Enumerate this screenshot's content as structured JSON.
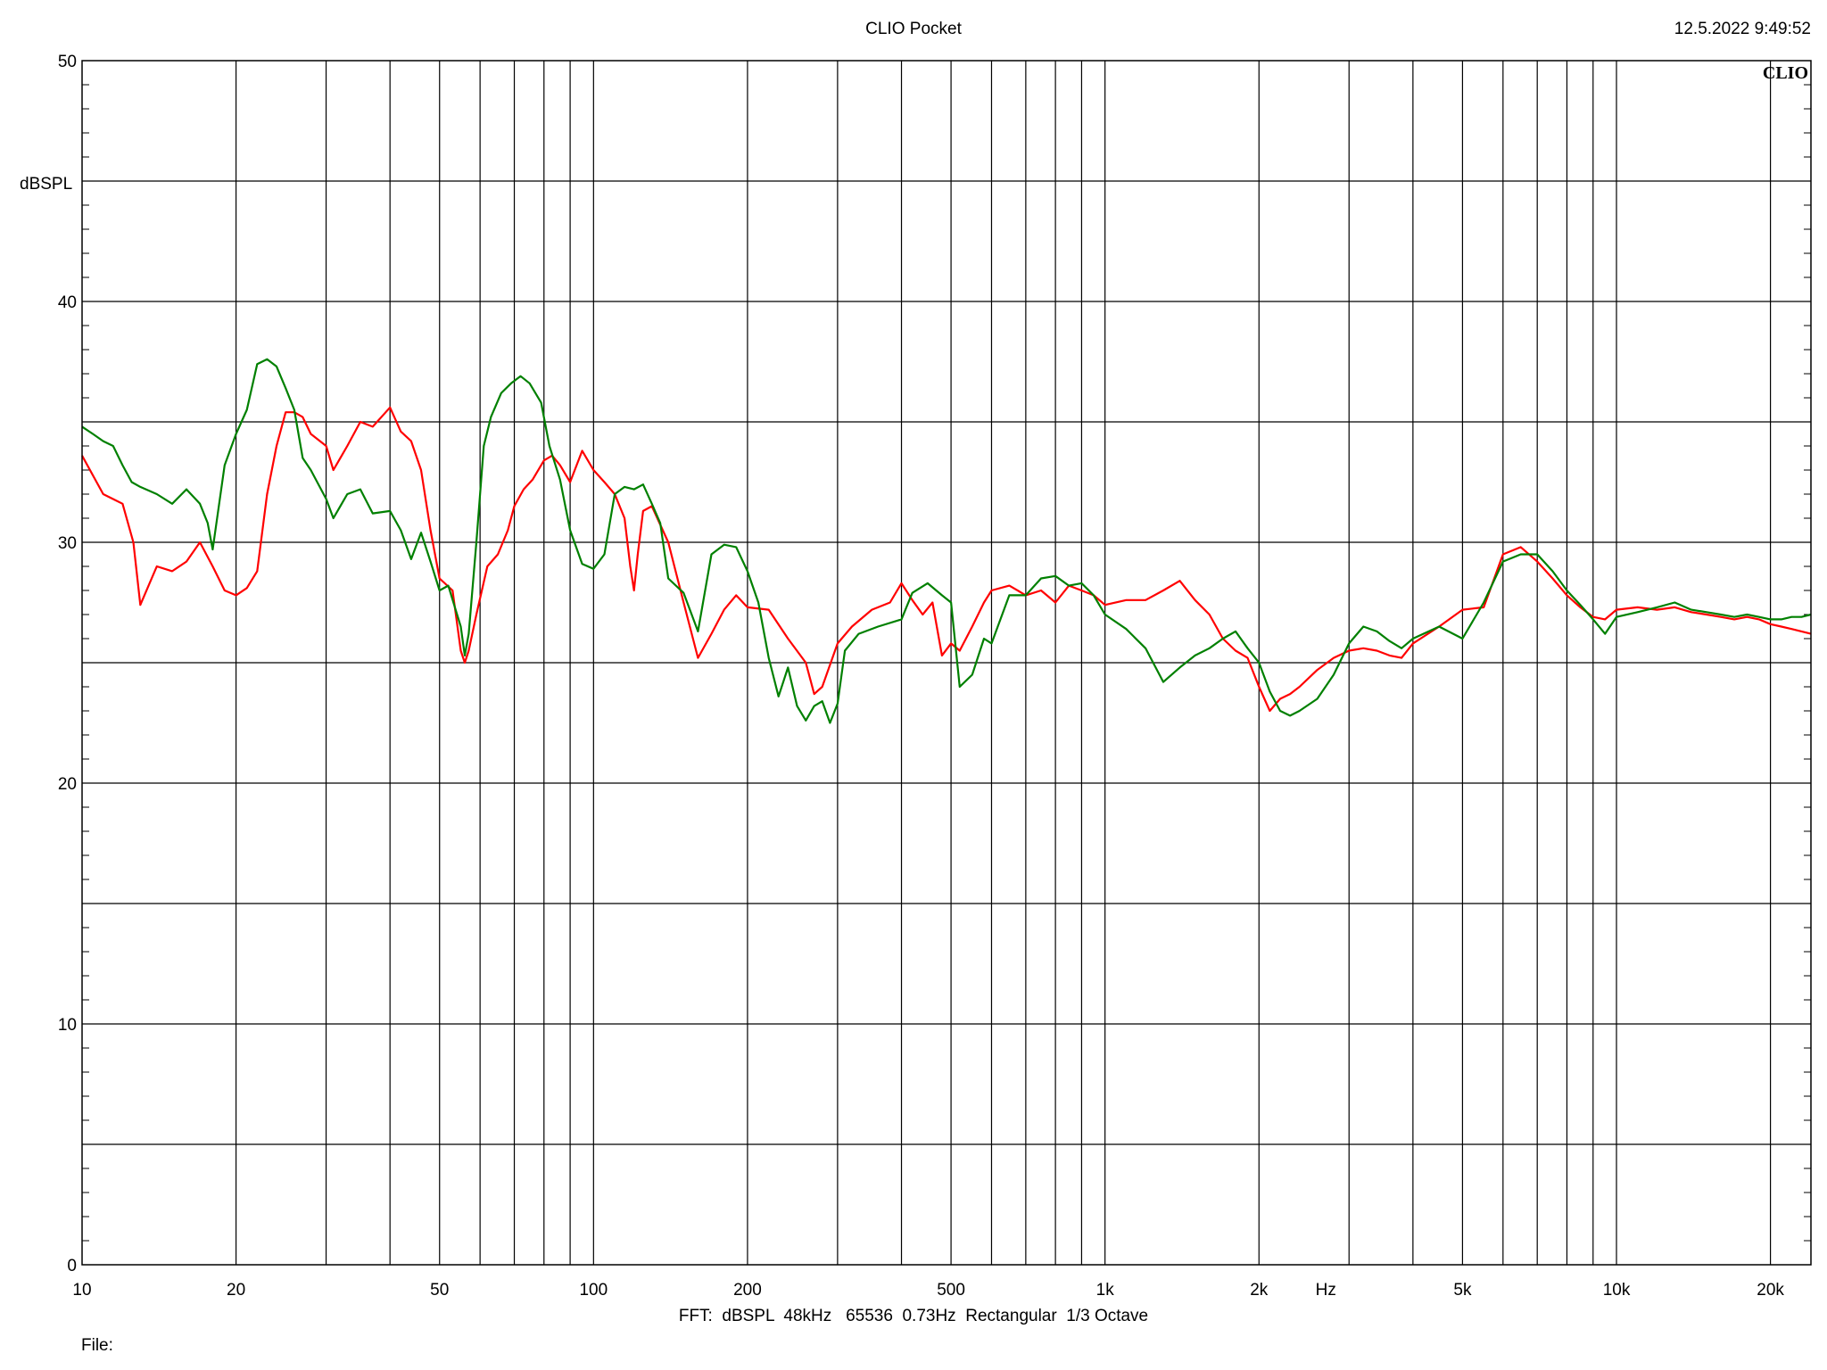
{
  "header": {
    "title": "CLIO Pocket",
    "timestamp": "12.5.2022 9:49:52",
    "logo": "CLIO"
  },
  "footer": {
    "settings": "FFT:  dBSPL  48kHz   65536  0.73Hz  Rectangular  1/3 Octave",
    "file_label": "File:"
  },
  "colors": {
    "background": "#ffffff",
    "grid": "#000000",
    "series1": "#ff0000",
    "series2": "#008000"
  },
  "chart_data": {
    "type": "line",
    "title": "CLIO Pocket",
    "xlabel": "Hz",
    "ylabel": "dBSPL",
    "xscale": "log",
    "xlim": [
      10,
      24000
    ],
    "ylim": [
      0,
      50
    ],
    "grid": true,
    "x_ticks": [
      {
        "value": 10,
        "label": "10"
      },
      {
        "value": 20,
        "label": "20"
      },
      {
        "value": 50,
        "label": "50"
      },
      {
        "value": 100,
        "label": "100"
      },
      {
        "value": 200,
        "label": "200"
      },
      {
        "value": 500,
        "label": "500"
      },
      {
        "value": 1000,
        "label": "1k"
      },
      {
        "value": 2000,
        "label": "2k"
      },
      {
        "value": 5000,
        "label": "5k"
      },
      {
        "value": 10000,
        "label": "10k"
      },
      {
        "value": 20000,
        "label": "20k"
      }
    ],
    "y_ticks": [
      0,
      10,
      20,
      30,
      40,
      50
    ],
    "series": [
      {
        "color": "#ff0000",
        "points": [
          [
            10,
            33.6
          ],
          [
            11,
            32.0
          ],
          [
            12,
            31.6
          ],
          [
            12.6,
            30.0
          ],
          [
            13,
            27.4
          ],
          [
            14,
            29.0
          ],
          [
            15,
            28.8
          ],
          [
            16,
            29.2
          ],
          [
            17,
            30.0
          ],
          [
            18,
            29.0
          ],
          [
            19,
            28.0
          ],
          [
            20,
            27.8
          ],
          [
            21,
            28.1
          ],
          [
            22,
            28.8
          ],
          [
            23,
            32.0
          ],
          [
            24,
            34.0
          ],
          [
            25,
            35.4
          ],
          [
            26,
            35.4
          ],
          [
            27,
            35.2
          ],
          [
            28,
            34.5
          ],
          [
            30,
            34.0
          ],
          [
            31,
            33.0
          ],
          [
            33,
            34.0
          ],
          [
            35,
            35.0
          ],
          [
            37,
            34.8
          ],
          [
            40,
            35.6
          ],
          [
            42,
            34.6
          ],
          [
            44,
            34.2
          ],
          [
            46,
            33.0
          ],
          [
            48,
            30.5
          ],
          [
            50,
            28.5
          ],
          [
            53,
            28.0
          ],
          [
            55,
            25.5
          ],
          [
            56,
            25.0
          ],
          [
            57,
            25.5
          ],
          [
            59,
            27.0
          ],
          [
            62,
            29.0
          ],
          [
            65,
            29.5
          ],
          [
            68,
            30.5
          ],
          [
            70,
            31.5
          ],
          [
            73,
            32.2
          ],
          [
            76,
            32.6
          ],
          [
            80,
            33.4
          ],
          [
            83,
            33.6
          ],
          [
            86,
            33.2
          ],
          [
            90,
            32.5
          ],
          [
            95,
            33.8
          ],
          [
            100,
            33.0
          ],
          [
            105,
            32.5
          ],
          [
            110,
            32.0
          ],
          [
            115,
            31.0
          ],
          [
            118,
            29.0
          ],
          [
            120,
            28.0
          ],
          [
            122,
            29.5
          ],
          [
            125,
            31.3
          ],
          [
            130,
            31.5
          ],
          [
            140,
            30.0
          ],
          [
            150,
            27.5
          ],
          [
            160,
            25.2
          ],
          [
            170,
            26.2
          ],
          [
            180,
            27.2
          ],
          [
            190,
            27.8
          ],
          [
            200,
            27.3
          ],
          [
            220,
            27.2
          ],
          [
            240,
            26.0
          ],
          [
            260,
            25.0
          ],
          [
            270,
            23.7
          ],
          [
            280,
            24.0
          ],
          [
            300,
            25.8
          ],
          [
            320,
            26.5
          ],
          [
            350,
            27.2
          ],
          [
            380,
            27.5
          ],
          [
            400,
            28.3
          ],
          [
            420,
            27.6
          ],
          [
            440,
            27.0
          ],
          [
            460,
            27.5
          ],
          [
            480,
            25.3
          ],
          [
            500,
            25.8
          ],
          [
            520,
            25.5
          ],
          [
            550,
            26.5
          ],
          [
            580,
            27.5
          ],
          [
            600,
            28.0
          ],
          [
            650,
            28.2
          ],
          [
            700,
            27.8
          ],
          [
            750,
            28.0
          ],
          [
            800,
            27.5
          ],
          [
            850,
            28.2
          ],
          [
            900,
            28.0
          ],
          [
            950,
            27.8
          ],
          [
            1000,
            27.4
          ],
          [
            1100,
            27.6
          ],
          [
            1200,
            27.6
          ],
          [
            1300,
            28.0
          ],
          [
            1400,
            28.4
          ],
          [
            1500,
            27.6
          ],
          [
            1600,
            27.0
          ],
          [
            1700,
            26.0
          ],
          [
            1800,
            25.5
          ],
          [
            1900,
            25.2
          ],
          [
            2000,
            24.0
          ],
          [
            2100,
            23.0
          ],
          [
            2200,
            23.5
          ],
          [
            2300,
            23.7
          ],
          [
            2400,
            24.0
          ],
          [
            2600,
            24.7
          ],
          [
            2800,
            25.2
          ],
          [
            3000,
            25.5
          ],
          [
            3200,
            25.6
          ],
          [
            3400,
            25.5
          ],
          [
            3600,
            25.3
          ],
          [
            3800,
            25.2
          ],
          [
            4000,
            25.8
          ],
          [
            4500,
            26.5
          ],
          [
            5000,
            27.2
          ],
          [
            5500,
            27.3
          ],
          [
            6000,
            29.5
          ],
          [
            6500,
            29.8
          ],
          [
            7000,
            29.2
          ],
          [
            7500,
            28.5
          ],
          [
            8000,
            27.8
          ],
          [
            8500,
            27.3
          ],
          [
            9000,
            26.9
          ],
          [
            9500,
            26.8
          ],
          [
            10000,
            27.2
          ],
          [
            11000,
            27.3
          ],
          [
            12000,
            27.2
          ],
          [
            13000,
            27.3
          ],
          [
            14000,
            27.1
          ],
          [
            15000,
            27.0
          ],
          [
            16000,
            26.9
          ],
          [
            17000,
            26.8
          ],
          [
            18000,
            26.9
          ],
          [
            19000,
            26.8
          ],
          [
            20000,
            26.6
          ],
          [
            21000,
            26.5
          ],
          [
            22000,
            26.4
          ],
          [
            23000,
            26.3
          ],
          [
            24000,
            26.2
          ]
        ]
      },
      {
        "color": "#008000",
        "points": [
          [
            10,
            34.8
          ],
          [
            10.5,
            34.5
          ],
          [
            11,
            34.2
          ],
          [
            11.5,
            34.0
          ],
          [
            12,
            33.2
          ],
          [
            12.5,
            32.5
          ],
          [
            13,
            32.3
          ],
          [
            14,
            32.0
          ],
          [
            15,
            31.6
          ],
          [
            16,
            32.2
          ],
          [
            17,
            31.6
          ],
          [
            17.6,
            30.8
          ],
          [
            18,
            29.7
          ],
          [
            19,
            33.2
          ],
          [
            20,
            34.5
          ],
          [
            21,
            35.5
          ],
          [
            22,
            37.4
          ],
          [
            23,
            37.6
          ],
          [
            24,
            37.3
          ],
          [
            25,
            36.4
          ],
          [
            26,
            35.5
          ],
          [
            27,
            33.5
          ],
          [
            28,
            33.0
          ],
          [
            30,
            31.8
          ],
          [
            31,
            31.0
          ],
          [
            33,
            32.0
          ],
          [
            35,
            32.2
          ],
          [
            37,
            31.2
          ],
          [
            40,
            31.3
          ],
          [
            42,
            30.5
          ],
          [
            44,
            29.3
          ],
          [
            46,
            30.4
          ],
          [
            48,
            29.2
          ],
          [
            50,
            28.0
          ],
          [
            52,
            28.2
          ],
          [
            55,
            26.5
          ],
          [
            56,
            25.3
          ],
          [
            57,
            26.2
          ],
          [
            59,
            30.0
          ],
          [
            61,
            34.0
          ],
          [
            63,
            35.2
          ],
          [
            66,
            36.2
          ],
          [
            69,
            36.6
          ],
          [
            72,
            36.9
          ],
          [
            75,
            36.6
          ],
          [
            79,
            35.8
          ],
          [
            82,
            34.0
          ],
          [
            86,
            32.6
          ],
          [
            90,
            30.5
          ],
          [
            95,
            29.1
          ],
          [
            100,
            28.9
          ],
          [
            105,
            29.5
          ],
          [
            110,
            32.0
          ],
          [
            115,
            32.3
          ],
          [
            120,
            32.2
          ],
          [
            125,
            32.4
          ],
          [
            130,
            31.6
          ],
          [
            135,
            30.8
          ],
          [
            140,
            28.5
          ],
          [
            150,
            27.9
          ],
          [
            160,
            26.3
          ],
          [
            170,
            29.5
          ],
          [
            180,
            29.9
          ],
          [
            190,
            29.8
          ],
          [
            200,
            28.8
          ],
          [
            210,
            27.5
          ],
          [
            220,
            25.2
          ],
          [
            230,
            23.6
          ],
          [
            240,
            24.8
          ],
          [
            250,
            23.2
          ],
          [
            260,
            22.6
          ],
          [
            270,
            23.2
          ],
          [
            280,
            23.4
          ],
          [
            290,
            22.5
          ],
          [
            300,
            23.3
          ],
          [
            310,
            25.5
          ],
          [
            330,
            26.2
          ],
          [
            360,
            26.5
          ],
          [
            400,
            26.8
          ],
          [
            420,
            27.9
          ],
          [
            450,
            28.3
          ],
          [
            480,
            27.8
          ],
          [
            500,
            27.5
          ],
          [
            520,
            24.0
          ],
          [
            550,
            24.5
          ],
          [
            580,
            26.0
          ],
          [
            600,
            25.8
          ],
          [
            650,
            27.8
          ],
          [
            700,
            27.8
          ],
          [
            750,
            28.5
          ],
          [
            800,
            28.6
          ],
          [
            850,
            28.2
          ],
          [
            900,
            28.3
          ],
          [
            950,
            27.8
          ],
          [
            1000,
            27.0
          ],
          [
            1100,
            26.4
          ],
          [
            1200,
            25.6
          ],
          [
            1300,
            24.2
          ],
          [
            1400,
            24.8
          ],
          [
            1500,
            25.3
          ],
          [
            1600,
            25.6
          ],
          [
            1700,
            26.0
          ],
          [
            1800,
            26.3
          ],
          [
            1900,
            25.6
          ],
          [
            2000,
            25.0
          ],
          [
            2100,
            23.8
          ],
          [
            2200,
            23.0
          ],
          [
            2300,
            22.8
          ],
          [
            2400,
            23.0
          ],
          [
            2600,
            23.5
          ],
          [
            2800,
            24.5
          ],
          [
            3000,
            25.8
          ],
          [
            3200,
            26.5
          ],
          [
            3400,
            26.3
          ],
          [
            3600,
            25.9
          ],
          [
            3800,
            25.6
          ],
          [
            4000,
            26.0
          ],
          [
            4500,
            26.5
          ],
          [
            5000,
            26.0
          ],
          [
            5500,
            27.5
          ],
          [
            6000,
            29.2
          ],
          [
            6500,
            29.5
          ],
          [
            7000,
            29.5
          ],
          [
            7500,
            28.8
          ],
          [
            8000,
            28.0
          ],
          [
            8500,
            27.4
          ],
          [
            9000,
            26.8
          ],
          [
            9500,
            26.2
          ],
          [
            10000,
            26.9
          ],
          [
            11000,
            27.1
          ],
          [
            12000,
            27.3
          ],
          [
            13000,
            27.5
          ],
          [
            14000,
            27.2
          ],
          [
            15000,
            27.1
          ],
          [
            16000,
            27.0
          ],
          [
            17000,
            26.9
          ],
          [
            18000,
            27.0
          ],
          [
            19000,
            26.9
          ],
          [
            20000,
            26.8
          ],
          [
            21000,
            26.8
          ],
          [
            22000,
            26.9
          ],
          [
            23000,
            26.9
          ],
          [
            24000,
            27.0
          ]
        ]
      }
    ]
  }
}
